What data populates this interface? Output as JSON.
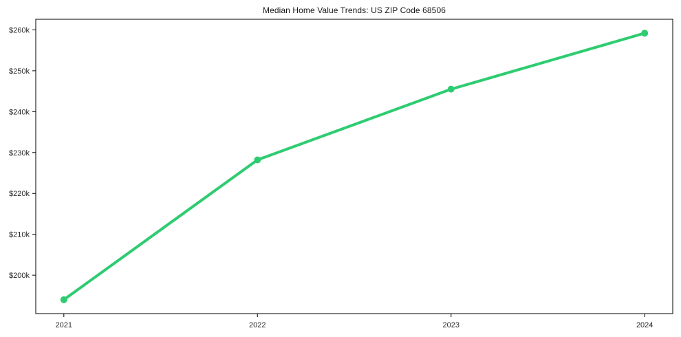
{
  "chart_data": {
    "type": "line",
    "title": "Median Home Value Trends: US ZIP Code 68506",
    "x": [
      2021,
      2022,
      2023,
      2024
    ],
    "xtick_labels": [
      "2021",
      "2022",
      "2023",
      "2024"
    ],
    "series": [
      {
        "name": "median-home-value",
        "values": [
          194000,
          228200,
          245500,
          259200
        ],
        "color": "#2ecc71",
        "marker": "circle"
      }
    ],
    "yticks": [
      200000,
      210000,
      220000,
      230000,
      240000,
      250000,
      260000
    ],
    "ytick_labels": [
      "$200k",
      "$210k",
      "$220k",
      "$230k",
      "$240k",
      "$250k",
      "$260k"
    ],
    "xlim": [
      2020.855,
      2024.145
    ],
    "ylim": [
      190600,
      262600
    ],
    "grid": false,
    "legend_position": "none",
    "xlabel": "",
    "ylabel": "",
    "line_width": 4,
    "marker_size": 5,
    "axis_color": "#000000",
    "text_color": "#262626",
    "background": "#ffffff"
  }
}
